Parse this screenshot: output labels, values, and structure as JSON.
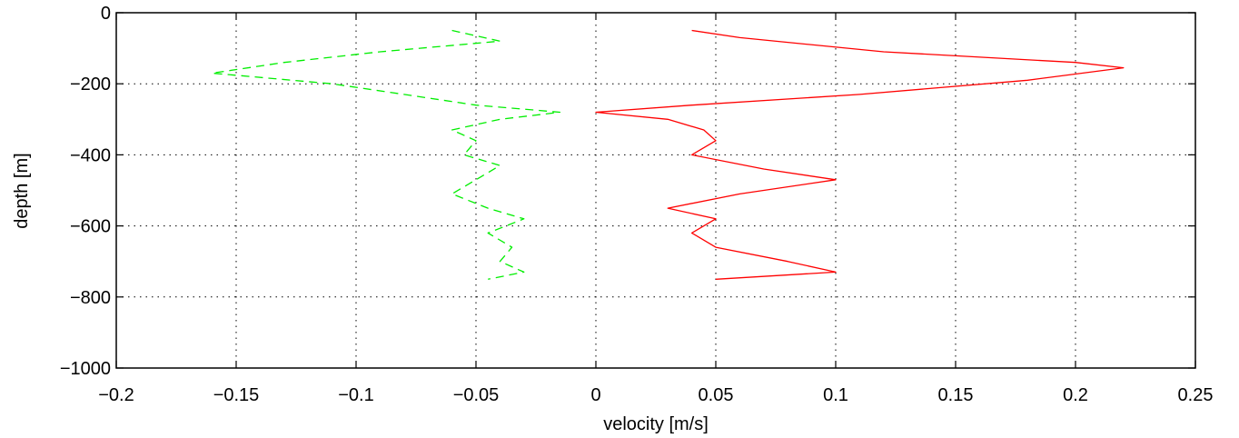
{
  "chart_data": {
    "type": "line",
    "title": "",
    "xlabel": "velocity [m/s]",
    "ylabel": "depth [m]",
    "xlim": [
      -0.2,
      0.25
    ],
    "ylim": [
      -1000,
      0
    ],
    "xticks": [
      -0.2,
      -0.15,
      -0.1,
      -0.05,
      0,
      0.05,
      0.1,
      0.15,
      0.2,
      0.25
    ],
    "xtick_labels": [
      "−0.2",
      "−0.15",
      "−0.1",
      "−0.05",
      "0",
      "0.05",
      "0.1",
      "0.15",
      "0.2",
      "0.25"
    ],
    "yticks": [
      0,
      -200,
      -400,
      -600,
      -800,
      -1000
    ],
    "ytick_labels": [
      "0",
      "−200",
      "−400",
      "−600",
      "−800",
      "−1000"
    ],
    "grid": true,
    "grid_style": "dotted",
    "legend": false,
    "colors": {
      "u_component": "#00ee00",
      "v_component": "#ff0000"
    },
    "series": [
      {
        "style": "dashed",
        "color": "#00ee00",
        "x": [
          -0.06,
          -0.04,
          -0.09,
          -0.13,
          -0.16,
          -0.11,
          -0.08,
          -0.05,
          -0.015,
          -0.04,
          -0.06,
          -0.05,
          -0.055,
          -0.04,
          -0.05,
          -0.06,
          -0.045,
          -0.03,
          -0.045,
          -0.035,
          -0.04,
          -0.03,
          -0.045
        ],
        "y": [
          -50,
          -80,
          -110,
          -140,
          -170,
          -200,
          -230,
          -260,
          -280,
          -300,
          -330,
          -360,
          -400,
          -430,
          -470,
          -510,
          -550,
          -580,
          -620,
          -660,
          -700,
          -730,
          -750
        ]
      },
      {
        "style": "solid",
        "color": "#ff0000",
        "x": [
          0.04,
          0.06,
          0.12,
          0.2,
          0.22,
          0.18,
          0.11,
          0.04,
          0.0,
          0.03,
          0.045,
          0.05,
          0.04,
          0.07,
          0.1,
          0.06,
          0.03,
          0.05,
          0.04,
          0.05,
          0.08,
          0.1,
          0.05
        ],
        "y": [
          -50,
          -70,
          -110,
          -140,
          -155,
          -190,
          -230,
          -260,
          -280,
          -300,
          -330,
          -360,
          -400,
          -440,
          -470,
          -510,
          -550,
          -580,
          -620,
          -660,
          -700,
          -730,
          -750
        ]
      }
    ]
  }
}
